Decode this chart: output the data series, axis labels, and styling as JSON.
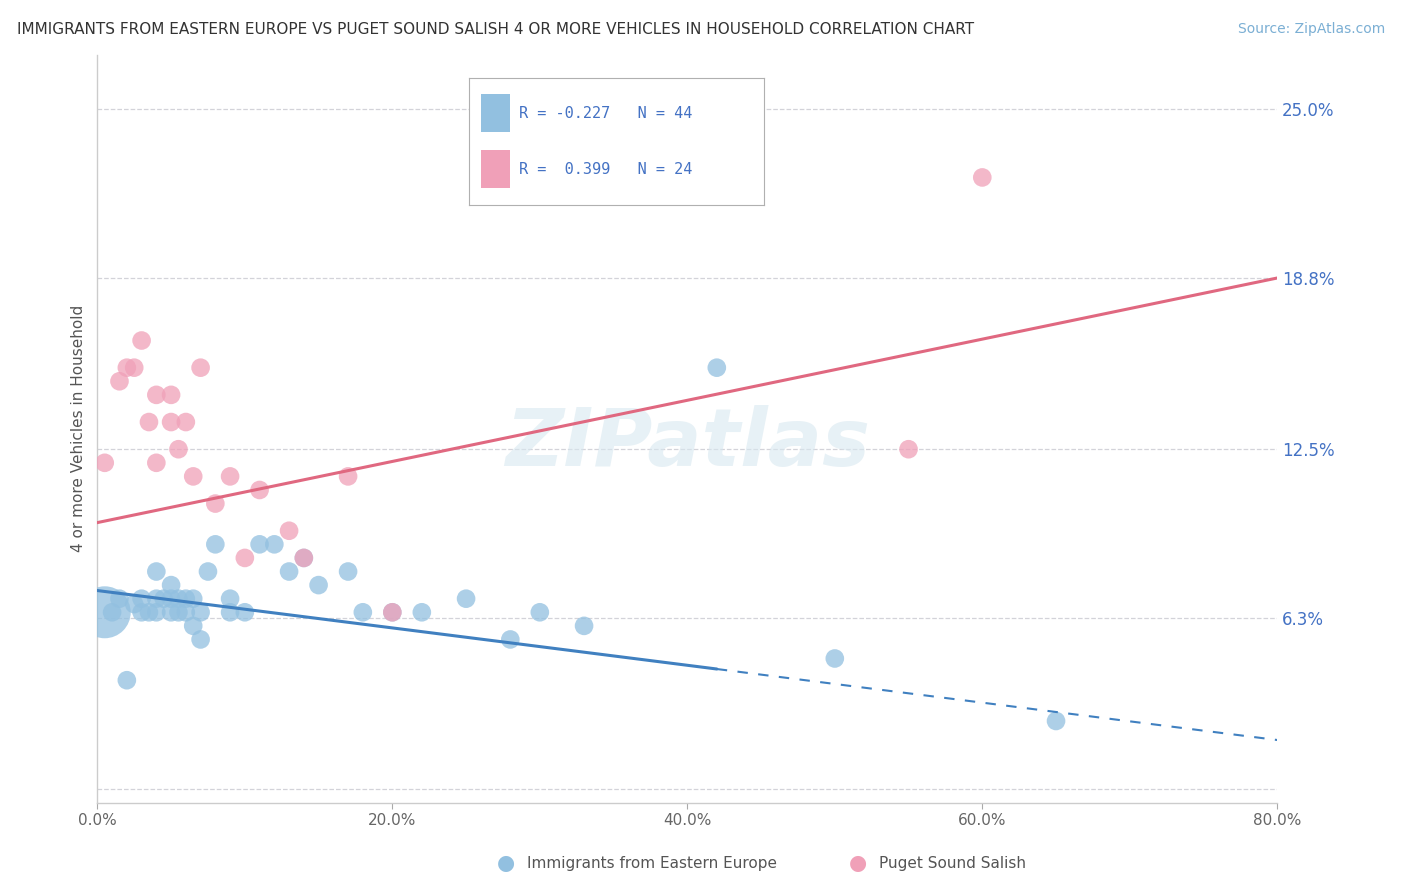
{
  "title": "IMMIGRANTS FROM EASTERN EUROPE VS PUGET SOUND SALISH 4 OR MORE VEHICLES IN HOUSEHOLD CORRELATION CHART",
  "source": "Source: ZipAtlas.com",
  "ylabel": "4 or more Vehicles in Household",
  "xlim": [
    0.0,
    0.8
  ],
  "ylim": [
    -0.005,
    0.27
  ],
  "yticks": [
    0.0,
    0.063,
    0.125,
    0.188,
    0.25
  ],
  "ytick_labels": [
    "",
    "6.3%",
    "12.5%",
    "18.8%",
    "25.0%"
  ],
  "xtick_labels": [
    "0.0%",
    "",
    "20.0%",
    "",
    "40.0%",
    "",
    "60.0%",
    "",
    "80.0%"
  ],
  "xticks": [
    0.0,
    0.1,
    0.2,
    0.3,
    0.4,
    0.5,
    0.6,
    0.7,
    0.8
  ],
  "blue_R": -0.227,
  "blue_N": 44,
  "pink_R": 0.399,
  "pink_N": 24,
  "blue_color": "#92c0e0",
  "pink_color": "#f0a0b8",
  "blue_line_color": "#4080c0",
  "pink_line_color": "#e06880",
  "blue_line_solid_end": 0.42,
  "blue_line_start_y": 0.073,
  "blue_line_end_y": 0.018,
  "pink_line_start_y": 0.098,
  "pink_line_end_y": 0.188,
  "blue_x": [
    0.005,
    0.01,
    0.015,
    0.02,
    0.025,
    0.03,
    0.03,
    0.035,
    0.04,
    0.04,
    0.04,
    0.045,
    0.05,
    0.05,
    0.05,
    0.055,
    0.055,
    0.06,
    0.06,
    0.065,
    0.065,
    0.07,
    0.07,
    0.075,
    0.08,
    0.09,
    0.09,
    0.1,
    0.11,
    0.12,
    0.13,
    0.14,
    0.15,
    0.17,
    0.18,
    0.2,
    0.22,
    0.25,
    0.28,
    0.3,
    0.33,
    0.42,
    0.5,
    0.65
  ],
  "blue_y": [
    0.065,
    0.065,
    0.07,
    0.04,
    0.068,
    0.065,
    0.07,
    0.065,
    0.07,
    0.065,
    0.08,
    0.07,
    0.065,
    0.07,
    0.075,
    0.065,
    0.07,
    0.065,
    0.07,
    0.06,
    0.07,
    0.065,
    0.055,
    0.08,
    0.09,
    0.065,
    0.07,
    0.065,
    0.09,
    0.09,
    0.08,
    0.085,
    0.075,
    0.08,
    0.065,
    0.065,
    0.065,
    0.07,
    0.055,
    0.065,
    0.06,
    0.155,
    0.048,
    0.025
  ],
  "pink_x": [
    0.005,
    0.015,
    0.02,
    0.025,
    0.03,
    0.035,
    0.04,
    0.04,
    0.05,
    0.05,
    0.055,
    0.06,
    0.065,
    0.07,
    0.08,
    0.09,
    0.1,
    0.11,
    0.13,
    0.14,
    0.17,
    0.2,
    0.55,
    0.6
  ],
  "pink_y": [
    0.12,
    0.15,
    0.155,
    0.155,
    0.165,
    0.135,
    0.145,
    0.12,
    0.135,
    0.145,
    0.125,
    0.135,
    0.115,
    0.155,
    0.105,
    0.115,
    0.085,
    0.11,
    0.095,
    0.085,
    0.115,
    0.065,
    0.125,
    0.225
  ],
  "blue_large_x": [
    0.005
  ],
  "blue_large_y": [
    0.07
  ],
  "watermark_text": "ZIPatlas",
  "background_color": "#ffffff",
  "grid_color": "#c8c8d0",
  "right_label_color": "#4472c4",
  "legend_text_color": "#4472c4"
}
